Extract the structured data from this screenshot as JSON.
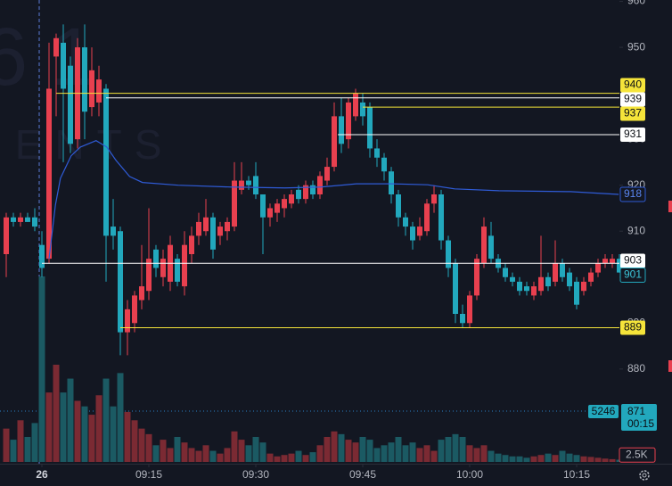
{
  "chart_data": {
    "type": "candlestick",
    "watermark": [
      "6 1",
      "IENTS"
    ],
    "up_color": "#e8404f",
    "down_color": "#22a8bd",
    "up_volume_color": "#7b2a33",
    "down_volume_color": "#1b5a63",
    "x": [
      -5,
      -4,
      -3,
      -2,
      -1,
      0,
      1,
      2,
      3,
      4,
      5,
      6,
      7,
      8,
      9,
      10,
      11,
      12,
      13,
      14,
      15,
      16,
      17,
      18,
      19,
      20,
      21,
      22,
      23,
      24,
      25,
      26,
      27,
      28,
      29,
      30,
      31,
      32,
      33,
      34,
      35,
      36,
      37,
      38,
      39,
      40,
      41,
      42,
      43,
      44,
      45,
      46,
      47,
      48,
      49,
      50,
      51,
      52,
      53,
      54,
      55,
      56,
      57,
      58,
      59,
      60,
      61,
      62,
      63,
      64,
      65,
      66,
      67,
      68,
      69,
      70,
      71,
      72,
      73,
      74,
      75,
      76,
      77,
      78,
      79,
      80,
      81
    ],
    "open": [
      905,
      913,
      912,
      913,
      913,
      907,
      904,
      948,
      951,
      946,
      930,
      950,
      937,
      938,
      941,
      911,
      910,
      888,
      890,
      895,
      897,
      906,
      900,
      899,
      904,
      898,
      905,
      909,
      910,
      913,
      909,
      910,
      911,
      919,
      921,
      922,
      918,
      913,
      914,
      915,
      916,
      919,
      917,
      920,
      918,
      921,
      924,
      935,
      930,
      935,
      938,
      937,
      928,
      926,
      923,
      918,
      913,
      911,
      909,
      910,
      916,
      918,
      908,
      903,
      892,
      890,
      896,
      903,
      909,
      904,
      902,
      900,
      899,
      898,
      896,
      897,
      900,
      899,
      903,
      901,
      899,
      897,
      899,
      901,
      903,
      903,
      904
    ],
    "high": [
      914,
      914,
      914,
      914,
      915,
      910,
      951,
      953,
      955,
      948,
      952,
      955,
      950,
      946,
      942,
      917,
      911,
      895,
      897,
      907,
      915,
      907,
      906,
      909,
      905,
      910,
      911,
      914,
      917,
      914,
      912,
      913,
      925,
      925,
      922,
      925,
      918,
      916,
      917,
      918,
      919,
      920,
      921,
      921,
      923,
      926,
      938,
      939,
      939,
      941,
      940,
      938,
      930,
      927,
      924,
      919,
      914,
      912,
      913,
      917,
      920,
      919,
      909,
      904,
      894,
      897,
      905,
      913,
      912,
      905,
      903,
      901,
      900,
      899,
      899,
      909,
      901,
      908,
      904,
      902,
      900,
      900,
      902,
      904,
      905,
      905,
      905
    ],
    "low": [
      900,
      911,
      911,
      912,
      910,
      900,
      903,
      935,
      925,
      927,
      928,
      930,
      935,
      935,
      899,
      906,
      883,
      883,
      888,
      893,
      895,
      900,
      898,
      897,
      898,
      896,
      903,
      907,
      909,
      904,
      907,
      908,
      910,
      918,
      919,
      917,
      905,
      911,
      912,
      913,
      915,
      916,
      916,
      917,
      917,
      920,
      923,
      927,
      928,
      934,
      933,
      926,
      924,
      921,
      916,
      911,
      909,
      906,
      908,
      909,
      914,
      906,
      900,
      890,
      889,
      889,
      895,
      902,
      903,
      901,
      899,
      898,
      896,
      896,
      895,
      896,
      897,
      898,
      899,
      897,
      893,
      896,
      898,
      900,
      902,
      902,
      901
    ],
    "close": [
      913,
      912,
      913,
      912,
      911,
      902,
      941,
      952,
      941,
      929,
      950,
      936,
      945,
      943,
      909,
      909,
      888,
      893,
      896,
      898,
      904,
      902,
      904,
      907,
      899,
      907,
      909,
      912,
      913,
      906,
      911,
      912,
      921,
      921,
      920,
      918,
      913,
      915,
      916,
      917,
      918,
      917,
      920,
      918,
      922,
      924,
      935,
      929,
      938,
      940,
      935,
      928,
      926,
      923,
      918,
      913,
      911,
      908,
      911,
      916,
      918,
      908,
      902,
      892,
      890,
      896,
      904,
      911,
      904,
      902,
      900,
      899,
      897,
      897,
      898,
      900,
      898,
      903,
      900,
      898,
      894,
      899,
      901,
      903,
      904,
      904,
      901
    ],
    "volume": [
      12000,
      8000,
      15000,
      9000,
      14000,
      66800,
      25000,
      35000,
      25000,
      30000,
      22000,
      20000,
      17000,
      24000,
      30000,
      20000,
      32000,
      18000,
      15000,
      12000,
      10000,
      6000,
      8000,
      5000,
      9000,
      7000,
      5000,
      4000,
      6000,
      4000,
      3000,
      5000,
      11000,
      8000,
      6000,
      9000,
      7000,
      3000,
      2000,
      2500,
      3000,
      4000,
      2500,
      3500,
      6000,
      9000,
      11000,
      10000,
      8000,
      7000,
      9000,
      8000,
      5000,
      6000,
      7000,
      9000,
      6000,
      7000,
      5000,
      6000,
      4000,
      8000,
      9000,
      10000,
      9000,
      6000,
      5000,
      6000,
      4000,
      3000,
      2500,
      2000,
      2000,
      1500,
      2000,
      2500,
      3000,
      2500,
      4000,
      3000,
      2500,
      2000,
      1800,
      1500,
      1200,
      1000,
      800
    ],
    "ma": {
      "color": "#2f5bd6",
      "x": [
        1,
        1.9,
        2.6,
        4.1,
        5.4,
        7.6,
        9.1,
        10.4,
        12.3,
        14.1,
        19.1,
        26.6,
        34.1,
        39.1,
        44.1,
        49.1,
        54.1,
        57.9,
        64.1,
        74.1,
        80.9
      ],
      "values": [
        904,
        915.7,
        921.5,
        926.4,
        928.3,
        929.7,
        928.3,
        925.4,
        921.9,
        920.6,
        920,
        919.6,
        919.4,
        919.6,
        920.3,
        920.3,
        920.1,
        919.2,
        918.8,
        918.6,
        918
      ]
    },
    "levels": [
      {
        "value": 940,
        "color": "#f5e43a",
        "start": 2
      },
      {
        "value": 939,
        "color": "#ffffff",
        "start": 9
      },
      {
        "value": 937,
        "color": "#f5e43a",
        "start": 45
      },
      {
        "value": 931,
        "color": "#ffffff",
        "start": 41.5
      },
      {
        "value": 903,
        "color": "#ffffff",
        "start": 0
      },
      {
        "value": 889,
        "color": "#f5e43a",
        "start": 11
      }
    ],
    "xlim": [
      -5.875,
      81
    ],
    "ylim": [
      859.4,
      960.3
    ],
    "vol_ylim": [
      0,
      70000
    ],
    "xticks": [
      {
        "value": 0,
        "label": "26"
      },
      {
        "value": 15,
        "label": "09:15"
      },
      {
        "value": 30,
        "label": "09:30"
      },
      {
        "value": 45,
        "label": "09:45"
      },
      {
        "value": 60,
        "label": "10:00"
      },
      {
        "value": 75,
        "label": "10:15"
      }
    ],
    "yticks": [
      960,
      950,
      940,
      930,
      920,
      910,
      900,
      890,
      880
    ],
    "vol_yticks": [
      {
        "value": 2500,
        "label": "2.5K"
      }
    ],
    "current_volume": 5246,
    "countdown": {
      "price": 871,
      "time": "00:15"
    }
  }
}
